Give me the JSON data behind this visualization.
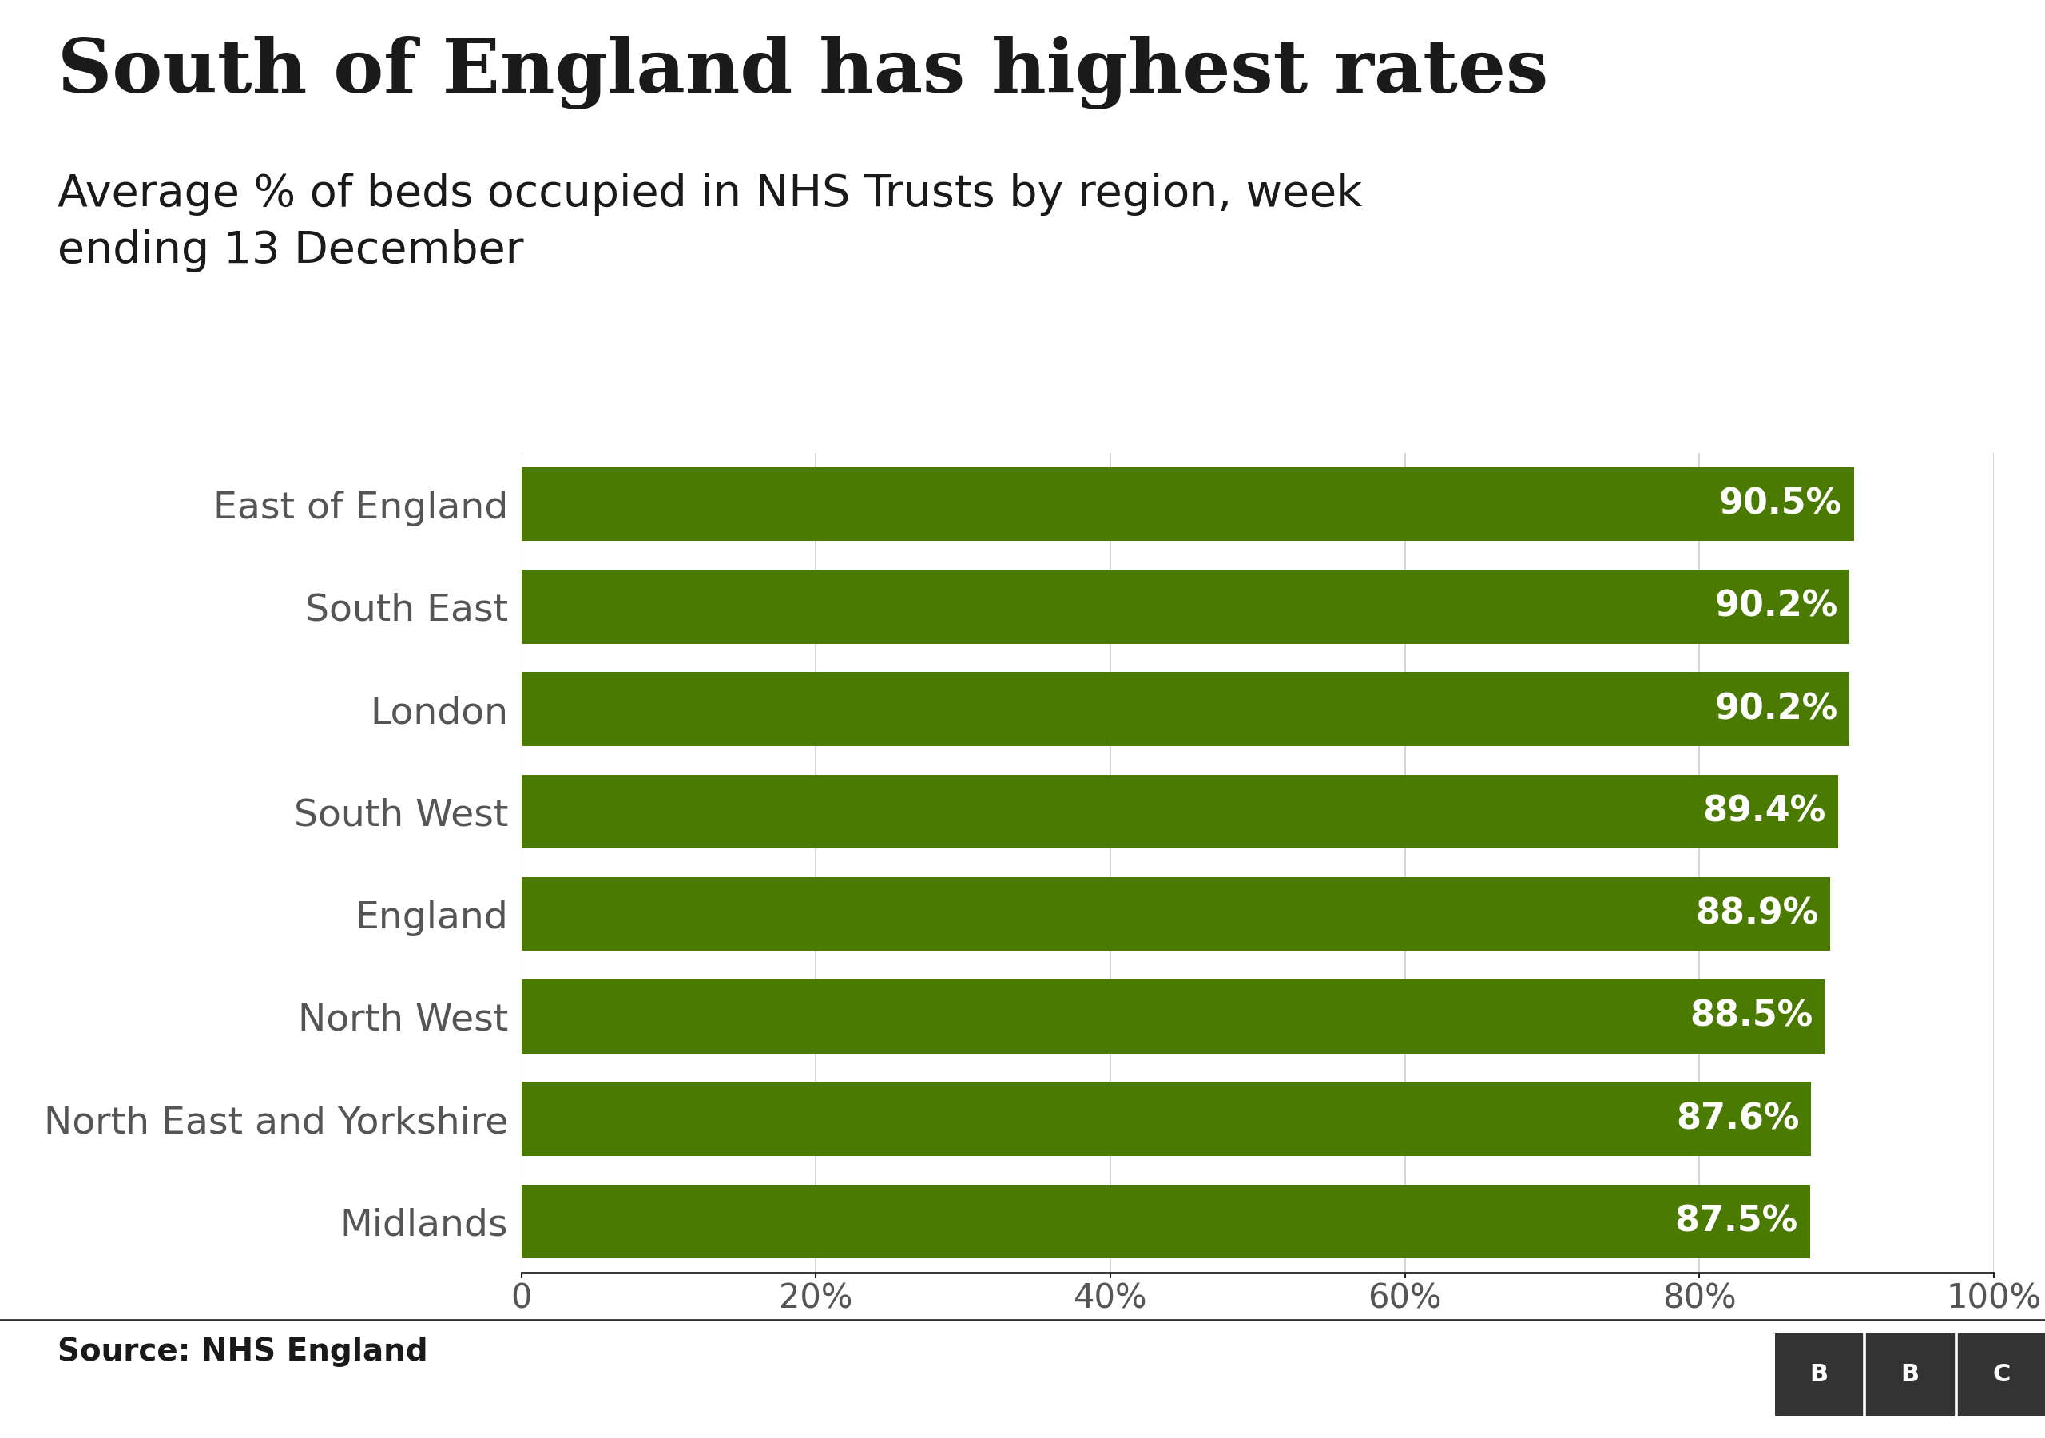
{
  "title": "South of England has highest rates",
  "subtitle": "Average % of beds occupied in NHS Trusts by region, week\nending 13 December",
  "categories": [
    "East of England",
    "South East",
    "London",
    "South West",
    "England",
    "North West",
    "North East and Yorkshire",
    "Midlands"
  ],
  "values": [
    90.5,
    90.2,
    90.2,
    89.4,
    88.9,
    88.5,
    87.6,
    87.5
  ],
  "bar_color": "#4a7a00",
  "label_color": "#ffffff",
  "ylabel_color": "#555555",
  "title_color": "#1a1a1a",
  "subtitle_color": "#1a1a1a",
  "source_text": "Source: NHS England",
  "background_color": "#ffffff",
  "xlim": [
    0,
    100
  ],
  "xticks": [
    0,
    20,
    40,
    60,
    80,
    100
  ],
  "xtick_labels": [
    "0",
    "20%",
    "40%",
    "60%",
    "80%",
    "100%"
  ],
  "title_fontsize": 68,
  "subtitle_fontsize": 40,
  "label_fontsize": 32,
  "ytick_fontsize": 34,
  "xtick_fontsize": 30,
  "source_fontsize": 28,
  "bar_height": 0.72,
  "grid_color": "#cccccc",
  "bbc_color": "#333333"
}
